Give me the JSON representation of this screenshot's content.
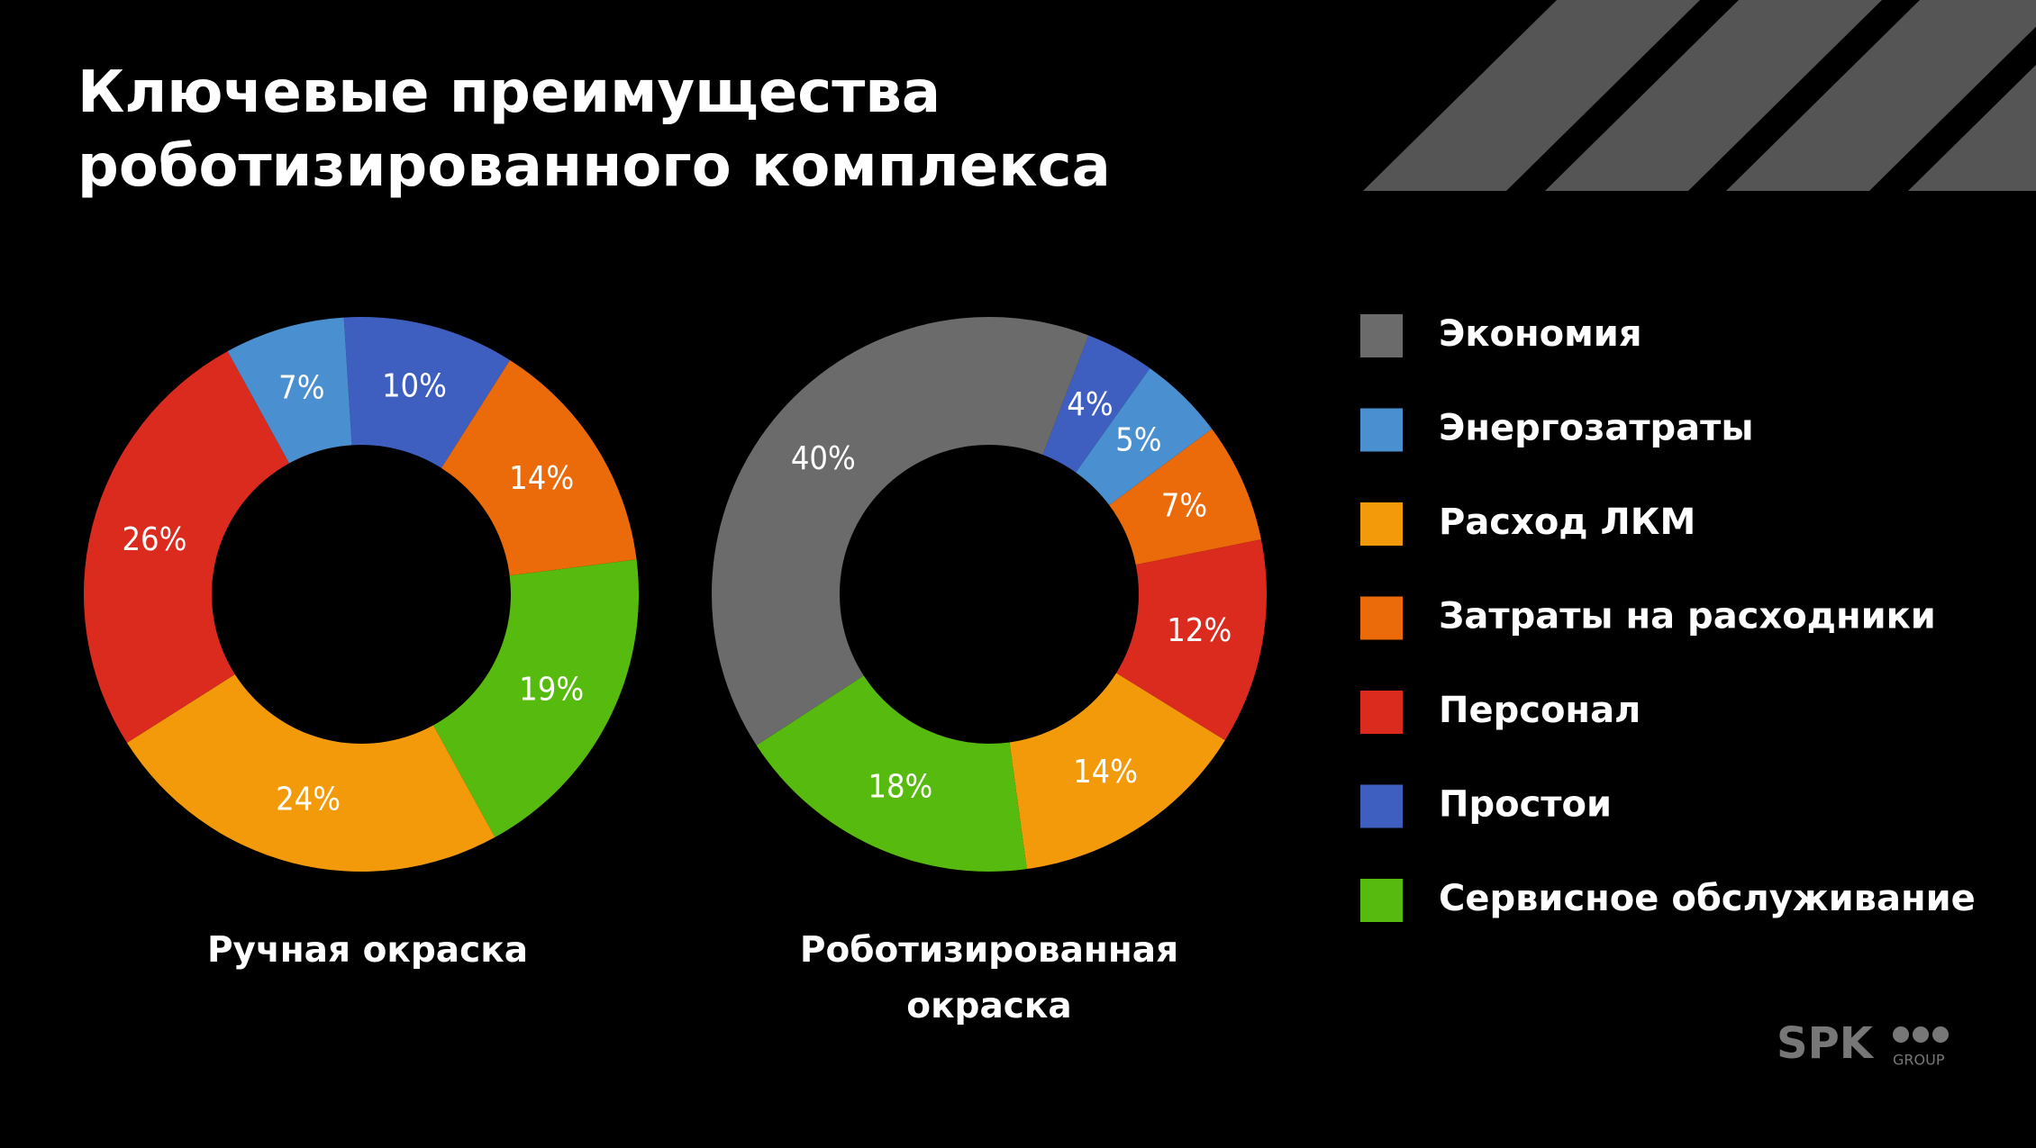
{
  "title": "Ключевые преимущества роботизированного комплекса",
  "legend": [
    {
      "name": "Экономия",
      "color": "#6b6b6b"
    },
    {
      "name": "Энергозатраты",
      "color": "#4a8fd0"
    },
    {
      "name": "Расход ЛКМ",
      "color": "#f39a0b"
    },
    {
      "name": "Затраты на расходники",
      "color": "#eb6a0a"
    },
    {
      "name": "Персонал",
      "color": "#db2b1f"
    },
    {
      "name": "Простои",
      "color": "#3f5fc0"
    },
    {
      "name": "Сервисное обслуживание",
      "color": "#57bb0f"
    }
  ],
  "chart_data": [
    {
      "type": "pie",
      "title": "Ручная окраска",
      "categories": [
        "Простои",
        "Затраты на расходники",
        "Сервисное обслуживание",
        "Расход ЛКМ",
        "Персонал",
        "Энергозатраты"
      ],
      "values": [
        10,
        14,
        19,
        24,
        26,
        7
      ],
      "value_labels": [
        "10%",
        "14%",
        "19%",
        "24%",
        "26%",
        "7%"
      ]
    },
    {
      "type": "pie",
      "title": "Роботизированная окраска",
      "categories": [
        "Простои",
        "Энергозатраты",
        "Затраты на расходники",
        "Персонал",
        "Расход ЛКМ",
        "Сервисное обслуживание",
        "Экономия"
      ],
      "values": [
        4,
        5,
        7,
        12,
        14,
        18,
        40
      ],
      "value_labels": [
        "4%",
        "5%",
        "7%",
        "12%",
        "14%",
        "18%",
        "40%"
      ]
    }
  ],
  "logo": {
    "text": "SPK",
    "sub": "GROUP"
  }
}
